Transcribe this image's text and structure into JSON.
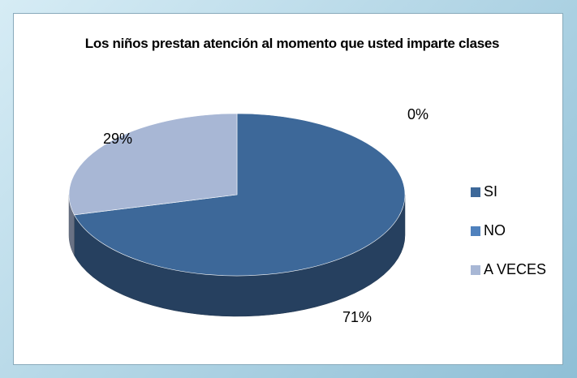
{
  "chart_data": {
    "type": "pie",
    "title": "Los niños prestan atención al momento que usted imparte clases",
    "categories": [
      "SI",
      "NO",
      "A VECES"
    ],
    "values": [
      71,
      0,
      29
    ],
    "value_labels": [
      "71%",
      "0%",
      "29%"
    ],
    "colors": [
      "#3d6899",
      "#4f81bd",
      "#a8b7d5"
    ],
    "legend": "right"
  }
}
